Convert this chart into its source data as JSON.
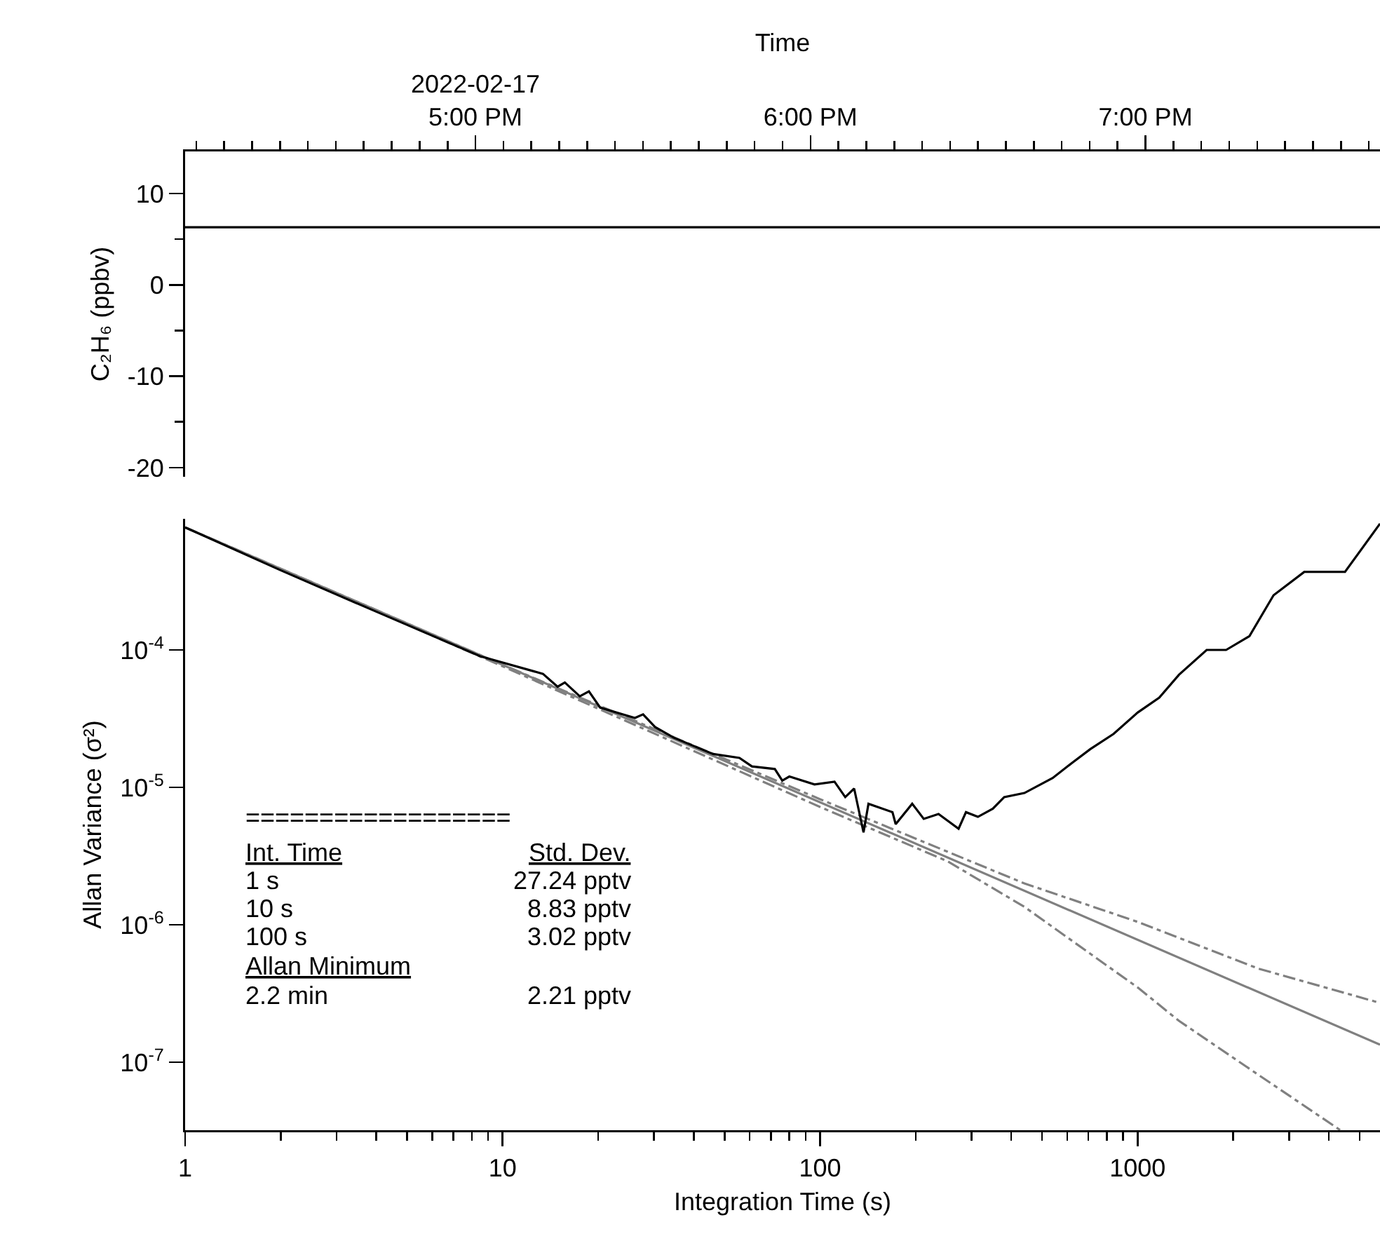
{
  "chart_data": [
    {
      "type": "line",
      "xlabel": "Time",
      "ylabel": "C₂H₆ (ppbv)",
      "xlim": [
        "2022-02-17T16:08",
        "2022-02-17T19:42"
      ],
      "ylim": [
        -21,
        14.6
      ],
      "xticks": [
        {
          "value": "2022-02-17T16:10",
          "label": null
        },
        {
          "value": "2022-02-17T16:15",
          "label": null
        },
        {
          "value": "2022-02-17T16:20",
          "label": null
        },
        {
          "value": "2022-02-17T16:25",
          "label": null
        },
        {
          "value": "2022-02-17T16:30",
          "label": null
        },
        {
          "value": "2022-02-17T16:35",
          "label": null
        },
        {
          "value": "2022-02-17T16:40",
          "label": null
        },
        {
          "value": "2022-02-17T16:45",
          "label": null
        },
        {
          "value": "2022-02-17T16:50",
          "label": null
        },
        {
          "value": "2022-02-17T16:55",
          "label": null
        },
        {
          "value": "2022-02-17T17:00",
          "label": "2022-02-17\n5:00 PM"
        },
        {
          "value": "2022-02-17T17:05",
          "label": null
        },
        {
          "value": "2022-02-17T17:10",
          "label": null
        },
        {
          "value": "2022-02-17T17:15",
          "label": null
        },
        {
          "value": "2022-02-17T17:20",
          "label": null
        },
        {
          "value": "2022-02-17T17:25",
          "label": null
        },
        {
          "value": "2022-02-17T17:30",
          "label": null
        },
        {
          "value": "2022-02-17T17:35",
          "label": null
        },
        {
          "value": "2022-02-17T17:40",
          "label": null
        },
        {
          "value": "2022-02-17T17:45",
          "label": null
        },
        {
          "value": "2022-02-17T17:50",
          "label": null
        },
        {
          "value": "2022-02-17T17:55",
          "label": null
        },
        {
          "value": "2022-02-17T18:00",
          "label": "6:00 PM"
        },
        {
          "value": "2022-02-17T18:05",
          "label": null
        },
        {
          "value": "2022-02-17T18:10",
          "label": null
        },
        {
          "value": "2022-02-17T18:15",
          "label": null
        },
        {
          "value": "2022-02-17T18:20",
          "label": null
        },
        {
          "value": "2022-02-17T18:25",
          "label": null
        },
        {
          "value": "2022-02-17T18:30",
          "label": null
        },
        {
          "value": "2022-02-17T18:35",
          "label": null
        },
        {
          "value": "2022-02-17T18:40",
          "label": null
        },
        {
          "value": "2022-02-17T18:45",
          "label": null
        },
        {
          "value": "2022-02-17T18:50",
          "label": null
        },
        {
          "value": "2022-02-17T18:55",
          "label": null
        },
        {
          "value": "2022-02-17T19:00",
          "label": "7:00 PM"
        },
        {
          "value": "2022-02-17T19:05",
          "label": null
        },
        {
          "value": "2022-02-17T19:10",
          "label": null
        },
        {
          "value": "2022-02-17T19:15",
          "label": null
        },
        {
          "value": "2022-02-17T19:20",
          "label": null
        },
        {
          "value": "2022-02-17T19:25",
          "label": null
        },
        {
          "value": "2022-02-17T19:30",
          "label": null
        },
        {
          "value": "2022-02-17T19:35",
          "label": null
        },
        {
          "value": "2022-02-17T19:40",
          "label": null
        }
      ],
      "yticks": [
        -20,
        {
          "value": -15,
          "label": null
        },
        -10,
        {
          "value": -5,
          "label": null
        },
        0,
        {
          "value": 5,
          "label": null
        },
        10
      ],
      "grid": false,
      "series": [
        {
          "color": "#000000",
          "x": [
            "2022-02-17T16:08",
            "2022-02-17T17:00",
            "2022-02-17T18:00",
            "2022-02-17T19:00",
            "2022-02-17T19:42"
          ],
          "values": [
            6.3,
            6.3,
            6.3,
            6.3,
            6.3
          ]
        }
      ]
    },
    {
      "type": "line",
      "xlabel": "Integration Time (s)",
      "ylabel": "Allan Variance (σ²)",
      "log": "xy",
      "grid": false,
      "xlim": [
        1,
        5800
      ],
      "ylim": [
        3.2e-08,
        0.0009
      ],
      "xticks": [
        1,
        {
          "value": 2,
          "label": null
        },
        {
          "value": 3,
          "label": null
        },
        {
          "value": 4,
          "label": null
        },
        {
          "value": 5,
          "label": null
        },
        {
          "value": 6,
          "label": null
        },
        {
          "value": 7,
          "label": null
        },
        {
          "value": 8,
          "label": null
        },
        {
          "value": 9,
          "label": null
        },
        10,
        {
          "value": 20,
          "label": null
        },
        {
          "value": 30,
          "label": null
        },
        {
          "value": 40,
          "label": null
        },
        {
          "value": 50,
          "label": null
        },
        {
          "value": 60,
          "label": null
        },
        {
          "value": 70,
          "label": null
        },
        {
          "value": 80,
          "label": null
        },
        {
          "value": 90,
          "label": null
        },
        100,
        {
          "value": 200,
          "label": null
        },
        {
          "value": 300,
          "label": null
        },
        {
          "value": 400,
          "label": null
        },
        {
          "value": 500,
          "label": null
        },
        {
          "value": 600,
          "label": null
        },
        {
          "value": 700,
          "label": null
        },
        {
          "value": 800,
          "label": null
        },
        {
          "value": 900,
          "label": null
        },
        1000,
        {
          "value": 2000,
          "label": null
        },
        {
          "value": 3000,
          "label": null
        },
        {
          "value": 4000,
          "label": null
        },
        {
          "value": 5000,
          "label": null
        }
      ],
      "yticks": [
        {
          "value": 1e-07,
          "label": "10$^{-7}$"
        },
        {
          "value": 1e-06,
          "label": "10$^{-6}$"
        },
        {
          "value": 1e-05,
          "label": "10$^{-5}$"
        },
        {
          "value": 0.0001,
          "label": "10$^{-4}$"
        }
      ],
      "annotations": [
        "==================",
        "Int. Time",
        "Std. Dev.",
        "1 s",
        "27.24 pptv",
        "10 s",
        "8.83 pptv",
        "100 s",
        "3.02 pptv",
        "Allan Minimum",
        "2.2 min",
        "2.21 pptv"
      ],
      "series": [
        {
          "color": "#808080",
          "line_style": "solid",
          "x": [
            1,
            5800
          ],
          "values": [
            0.00078,
            1.34e-07
          ]
        },
        {
          "color": "#808080",
          "line_style": "dashed",
          "x": [
            1,
            10,
            100,
            252,
            440,
            1000,
            2400,
            5800
          ],
          "values": [
            0.00078,
            7.8e-05,
            8.2e-06,
            3.4e-06,
            2e-06,
            1.05e-06,
            4.8e-07,
            2.7e-07
          ]
        },
        {
          "color": "#808080",
          "line_style": "dashed",
          "x": [
            1,
            10,
            100,
            252,
            440,
            1000,
            1350,
            2400,
            4350
          ],
          "values": [
            0.00078,
            7.6e-05,
            7.2e-06,
            2.9e-06,
            1.35e-06,
            3.5e-07,
            2e-07,
            8.1e-08,
            3.2e-08
          ]
        },
        {
          "color": "#000000",
          "line_style": "solid",
          "x": [
            1,
            2,
            4,
            8.5,
            13.4,
            14.9,
            15.7,
            17.5,
            18.7,
            20.3,
            26.1,
            27.7,
            30.2,
            34.6,
            46,
            55.7,
            61,
            72,
            76,
            80,
            96,
            111,
            120,
            128,
            137,
            142,
            169,
            173,
            195,
            212,
            236,
            273,
            288,
            314,
            350,
            380,
            440,
            540,
            620,
            710,
            840,
            1000,
            1170,
            1350,
            1650,
            1900,
            2250,
            2680,
            3350,
            4500,
            5800
          ],
          "values": [
            0.00078,
            0.00038,
            0.00019,
            9e-05,
            6.7e-05,
            5.4e-05,
            5.8e-05,
            4.6e-05,
            5e-05,
            3.8e-05,
            3.2e-05,
            3.4e-05,
            2.75e-05,
            2.3e-05,
            1.75e-05,
            1.64e-05,
            1.42e-05,
            1.36e-05,
            1.12e-05,
            1.2e-05,
            1.05e-05,
            1.1e-05,
            8.5e-06,
            9.8e-06,
            4.7e-06,
            7.6e-06,
            6.6e-06,
            5.4e-06,
            7.6e-06,
            5.9e-06,
            6.4e-06,
            5e-06,
            6.6e-06,
            6.1e-06,
            7e-06,
            8.5e-06,
            9.1e-06,
            1.17e-05,
            1.5e-05,
            1.9e-05,
            2.45e-05,
            3.5e-05,
            4.5e-05,
            6.6e-05,
            0.0001,
            0.0001,
            0.000126,
            0.00025,
            0.00037,
            0.00037,
            0.00083
          ]
        }
      ]
    }
  ]
}
